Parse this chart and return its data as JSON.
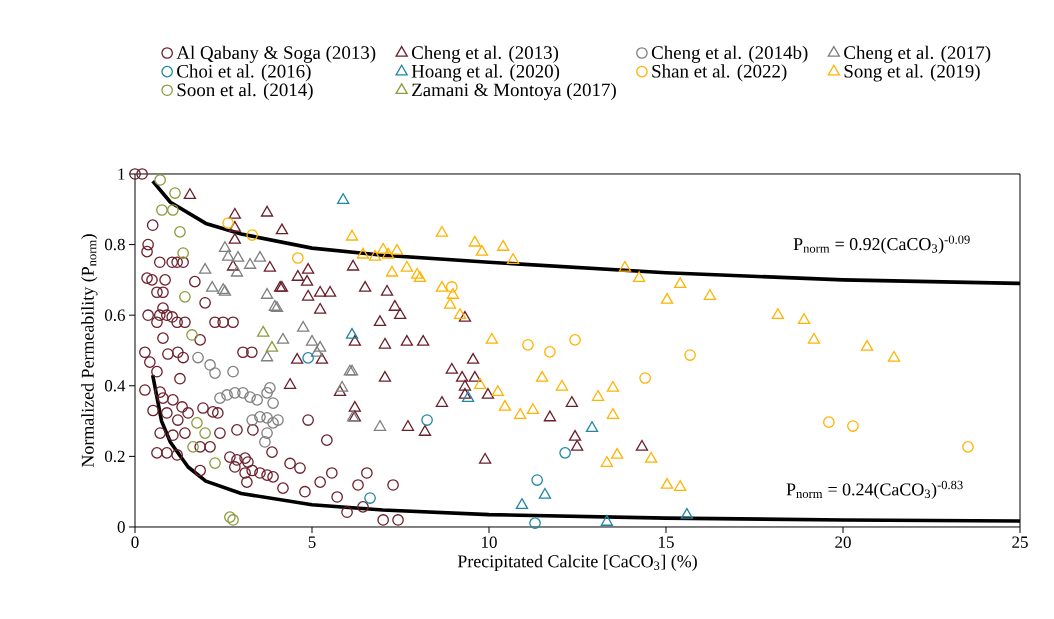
{
  "chart_data": {
    "type": "scatter",
    "xlabel": "Precipitated Calcite [CaCO$_{3}$] (%)",
    "ylabel": "Normalized Permeability (P$_{norm}$)",
    "xlim": [
      0,
      25
    ],
    "ylim": [
      0,
      1
    ],
    "xticks": [
      0,
      5,
      10,
      15,
      20,
      25
    ],
    "yticks": [
      0,
      0.2,
      0.4,
      0.6,
      0.8,
      1
    ],
    "grid": false,
    "legend": "top",
    "annotations": [
      "P$_{norm}$ = 0.92(CaCO$_{3}$)$^{-0.09}$",
      "P$_{norm}$ = 0.24(CaCO$_{3}$)$^{-0.83}$"
    ],
    "series": [
      {
        "name": "Al Qabany & Soga (2013)",
        "color": "#6b1f2b",
        "marker": "circle",
        "x": [
          0,
          0.2,
          0.5,
          0.37,
          0.34,
          0.7,
          1.05,
          1.19,
          1.36,
          0.34,
          0.48,
          0.85,
          0.62,
          0.79,
          0.7,
          0.79,
          1.69,
          1.98,
          0.37,
          0.62,
          0.9,
          1.05,
          1.19,
          1.41,
          0.79,
          1.84,
          2.26,
          2.49,
          2.77,
          0.28,
          0.42,
          0.62,
          0.93,
          1.21,
          1.36,
          1.27,
          3.05,
          3.3,
          0.28,
          0.71,
          0.51,
          0.79,
          1.07,
          1.33,
          0.9,
          1.21,
          1.5,
          1.92,
          2.2,
          2.34,
          0.71,
          1.07,
          1.41,
          2.4,
          2.88,
          3.33,
          3.87,
          1.84,
          2.12,
          0.62,
          0.9,
          1.19,
          1.84,
          2.68,
          2.88,
          3.11,
          3.19,
          3.31,
          2.82,
          3.11,
          3.16,
          3.53,
          3.73,
          3.9,
          4.89,
          5.42,
          4.38,
          4.66,
          4.18,
          4.8,
          5.23,
          5.56,
          5.71,
          5.99,
          6.55,
          6.3,
          6.44,
          7.01,
          7.43,
          7.29
        ],
        "values": [
          1,
          1,
          0.855,
          0.8,
          0.78,
          0.75,
          0.75,
          0.75,
          0.75,
          0.705,
          0.7,
          0.7,
          0.665,
          0.665,
          0.6,
          0.62,
          0.695,
          0.635,
          0.6,
          0.58,
          0.6,
          0.595,
          0.58,
          0.58,
          0.535,
          0.53,
          0.58,
          0.58,
          0.58,
          0.495,
          0.467,
          0.44,
          0.49,
          0.495,
          0.48,
          0.42,
          0.495,
          0.495,
          0.388,
          0.382,
          0.33,
          0.365,
          0.36,
          0.34,
          0.323,
          0.303,
          0.323,
          0.337,
          0.326,
          0.323,
          0.266,
          0.26,
          0.266,
          0.266,
          0.275,
          0.275,
          0.212,
          0.227,
          0.227,
          0.21,
          0.21,
          0.204,
          0.16,
          0.198,
          0.19,
          0.195,
          0.184,
          0.16,
          0.17,
          0.153,
          0.127,
          0.153,
          0.147,
          0.142,
          0.303,
          0.246,
          0.18,
          0.167,
          0.11,
          0.1,
          0.127,
          0.153,
          0.085,
          0.042,
          0.153,
          0.119,
          0.057,
          0.02,
          0.02,
          0.119
        ]
      },
      {
        "name": "Cheng et al. (2013)",
        "color": "#6b1f2b",
        "marker": "triangle",
        "x": [
          1.55,
          2.82,
          3.73,
          2.82,
          2.82,
          2.77,
          3.81,
          4.1,
          4.15,
          4.89,
          4.6,
          4.86,
          4.15,
          4.89,
          5.23,
          5.51,
          5.23,
          6.16,
          6.5,
          7.12,
          7.34,
          7.49,
          6.92,
          6.21,
          7.06,
          7.68,
          8.14,
          4.58,
          5.28,
          4.38,
          5.79,
          7.06,
          6.21,
          6.21,
          7.71,
          8.19,
          9.32,
          9.55,
          8.95,
          9.24,
          9.6,
          9.32,
          9.32,
          9.97,
          8.67,
          9.89,
          11.72,
          12.34,
          12.43,
          12.49,
          14.32
        ],
        "values": [
          0.94,
          0.884,
          0.89,
          0.847,
          0.813,
          0.737,
          0.734,
          0.677,
          0.84,
          0.728,
          0.708,
          0.694,
          0.677,
          0.652,
          0.663,
          0.663,
          0.615,
          0.737,
          0.677,
          0.666,
          0.623,
          0.6,
          0.58,
          0.524,
          0.516,
          0.524,
          0.524,
          0.473,
          0.473,
          0.402,
          0.382,
          0.422,
          0.337,
          0.31,
          0.283,
          0.269,
          0.592,
          0.473,
          0.445,
          0.422,
          0.422,
          0.397,
          0.374,
          0.374,
          0.351,
          0.19,
          0.31,
          0.351,
          0.255,
          0.227,
          0.227
        ]
      },
      {
        "name": "Cheng et al. (2014b)",
        "color": "#7f7f7f",
        "marker": "circle",
        "x": [
          1.78,
          2.12,
          2.26,
          2.77,
          2.4,
          2.6,
          2.82,
          3.05,
          3.25,
          3.45,
          3.73,
          3.81,
          3.31,
          3.53,
          3.73,
          3.9,
          3.73,
          3.67,
          3.9,
          4.04
        ],
        "values": [
          0.48,
          0.459,
          0.436,
          0.44,
          0.365,
          0.374,
          0.38,
          0.38,
          0.368,
          0.36,
          0.38,
          0.394,
          0.303,
          0.312,
          0.309,
          0.295,
          0.266,
          0.241,
          0.351,
          0.303
        ]
      },
      {
        "name": "Cheng et al. (2017)",
        "color": "#7f7f7f",
        "marker": "triangle",
        "x": [
          2.54,
          2.63,
          2.91,
          3.25,
          3.53,
          2.88,
          1.98,
          2.18,
          2.49,
          2.54,
          3.73,
          3.95,
          4.01,
          4.75,
          4.18,
          5.0,
          5.23,
          5.14,
          3.73,
          6.07,
          6.13,
          5.85,
          6.16,
          6.92
        ],
        "values": [
          0.79,
          0.765,
          0.762,
          0.742,
          0.762,
          0.72,
          0.728,
          0.677,
          0.671,
          0.666,
          0.657,
          0.623,
          0.62,
          0.564,
          0.53,
          0.524,
          0.507,
          0.493,
          0.48,
          0.44,
          0.44,
          0.394,
          0.31,
          0.283
        ]
      },
      {
        "name": "Choi et al. (2016)",
        "color": "#1f86a6",
        "marker": "circle",
        "x": [
          4.89,
          8.25,
          6.64,
          12.15,
          11.36,
          11.3
        ],
        "values": [
          0.479,
          0.303,
          0.082,
          0.21,
          0.133,
          0.011
        ]
      },
      {
        "name": "Hoang et al. (2020)",
        "color": "#1f86a6",
        "marker": "triangle",
        "x": [
          5.88,
          6.13,
          9.41,
          12.91,
          10.93,
          11.58,
          13.33,
          15.59
        ],
        "values": [
          0.926,
          0.544,
          0.365,
          0.28,
          0.062,
          0.091,
          0.014,
          0.034
        ]
      },
      {
        "name": "Shan et al. (2022)",
        "color": "#ffb300",
        "marker": "circle",
        "x": [
          2.63,
          3.31,
          4.6,
          8.95,
          11.1,
          11.72,
          12.43,
          15.68,
          14.41,
          19.6,
          20.28,
          23.53
        ],
        "values": [
          0.861,
          0.827,
          0.762,
          0.68,
          0.516,
          0.496,
          0.53,
          0.487,
          0.422,
          0.297,
          0.286,
          0.227
        ]
      },
      {
        "name": "Song et al. (2019)",
        "color": "#ffb300",
        "marker": "triangle",
        "x": [
          6.13,
          6.44,
          6.78,
          7.01,
          7.15,
          7.4,
          7.26,
          7.68,
          7.97,
          8.67,
          9.6,
          9.8,
          10.4,
          10.68,
          8.05,
          8.67,
          8.98,
          8.9,
          9.18,
          10.08,
          9.75,
          10.25,
          10.45,
          10.88,
          11.24,
          11.5,
          12.06,
          13.08,
          13.5,
          13.5,
          13.33,
          13.62,
          13.84,
          14.24,
          15.03,
          15.4,
          16.24,
          14.58,
          15.03,
          15.4,
          18.16,
          18.9,
          19.18,
          20.68,
          21.44
        ],
        "values": [
          0.822,
          0.771,
          0.765,
          0.785,
          0.771,
          0.782,
          0.72,
          0.734,
          0.714,
          0.833,
          0.805,
          0.779,
          0.793,
          0.756,
          0.705,
          0.677,
          0.657,
          0.629,
          0.6,
          0.53,
          0.402,
          0.382,
          0.34,
          0.317,
          0.331,
          0.422,
          0.397,
          0.368,
          0.394,
          0.317,
          0.181,
          0.204,
          0.734,
          0.705,
          0.643,
          0.688,
          0.654,
          0.193,
          0.119,
          0.113,
          0.6,
          0.586,
          0.53,
          0.51,
          0.479
        ]
      },
      {
        "name": "Soon et al. (2014)",
        "color": "#8c9a3c",
        "marker": "circle",
        "x": [
          0.71,
          1.13,
          0.76,
          1.07,
          1.27,
          1.36,
          1.41,
          1.61,
          1.75,
          1.98,
          1.64,
          2.26,
          2.68,
          2.77
        ],
        "values": [
          0.983,
          0.946,
          0.898,
          0.898,
          0.836,
          0.776,
          0.652,
          0.544,
          0.295,
          0.266,
          0.227,
          0.181,
          0.028,
          0.02
        ]
      },
      {
        "name": "Zamani & Montoya (2017)",
        "color": "#8c9a3c",
        "marker": "triangle",
        "x": [
          3.62,
          3.87
        ],
        "values": [
          0.55,
          0.507
        ]
      },
      {
        "type": "line",
        "color": "#000000",
        "line_style": "solid",
        "x": [
          0.5,
          1,
          2,
          3,
          5,
          7,
          10,
          15,
          20,
          25
        ],
        "values": [
          0.98,
          0.92,
          0.86,
          0.83,
          0.79,
          0.77,
          0.75,
          0.72,
          0.7,
          0.69
        ]
      },
      {
        "type": "line",
        "color": "#000000",
        "line_style": "solid",
        "x": [
          0.5,
          0.75,
          1,
          1.5,
          2,
          3,
          5,
          7,
          10,
          15,
          20,
          25
        ],
        "values": [
          0.43,
          0.3,
          0.24,
          0.17,
          0.13,
          0.095,
          0.063,
          0.048,
          0.035,
          0.025,
          0.02,
          0.017
        ]
      }
    ]
  }
}
